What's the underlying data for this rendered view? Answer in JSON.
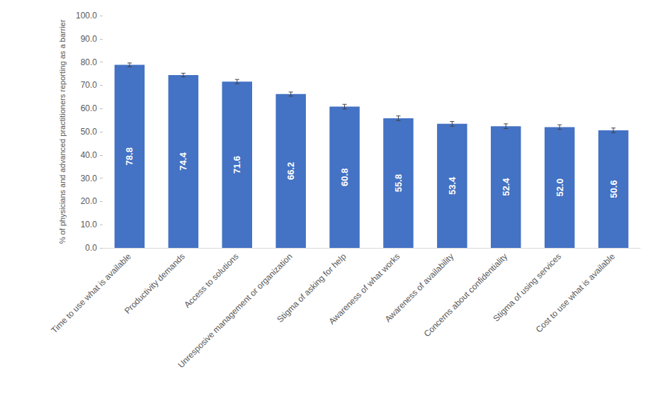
{
  "chart_data": {
    "type": "bar",
    "y_label": "% of physicians and advanced practitioners reporting as a barrier",
    "categories": [
      "Time to use what is available",
      "Productivity demands",
      "Access to solutions",
      "Unresposive management or organization",
      "Stigma of asking for help",
      "Awareness of what works",
      "Awareness of availability",
      "Concerns about confidentiality",
      "Stigma of using services",
      "Cost to use what is available"
    ],
    "values": [
      78.8,
      74.4,
      71.6,
      66.2,
      60.8,
      55.8,
      53.4,
      52.4,
      52.0,
      50.6
    ],
    "value_labels": [
      "78.8",
      "74.4",
      "71.6",
      "66.2",
      "60.8",
      "55.8",
      "53.4",
      "52.4",
      "52.0",
      "50.6"
    ],
    "errors": [
      0.8,
      0.8,
      0.9,
      0.9,
      1.0,
      1.0,
      1.0,
      1.0,
      1.0,
      1.0
    ],
    "color": "#4472c4",
    "ylim": [
      0,
      100
    ],
    "yticks": [
      {
        "value": 0,
        "label": "0.0"
      },
      {
        "value": 10,
        "label": "10.0"
      },
      {
        "value": 20,
        "label": "20.0"
      },
      {
        "value": 30,
        "label": "30.0"
      },
      {
        "value": 40,
        "label": "40.0"
      },
      {
        "value": 50,
        "label": "50.0"
      },
      {
        "value": 60,
        "label": "60.0"
      },
      {
        "value": 70,
        "label": "70.0"
      },
      {
        "value": 80,
        "label": "80.0"
      },
      {
        "value": 90,
        "label": "90.0"
      },
      {
        "value": 100,
        "label": "100.0"
      }
    ],
    "grid": false,
    "data_labels": true
  }
}
